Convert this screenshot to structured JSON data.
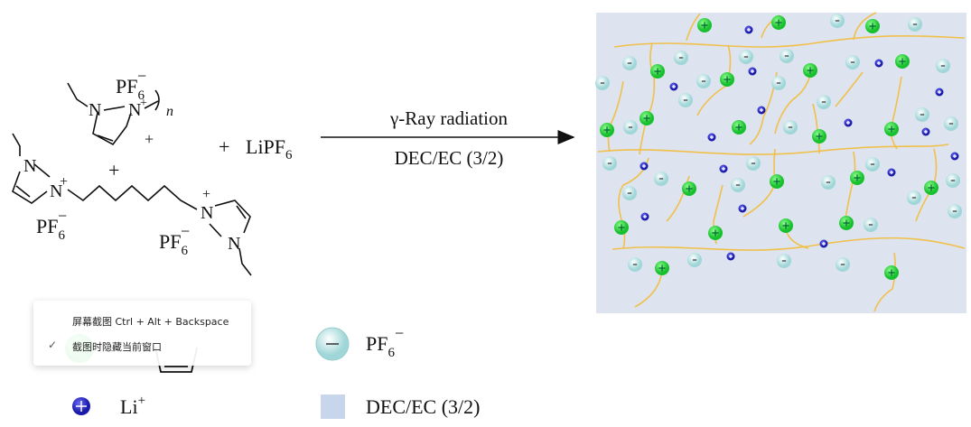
{
  "reaction": {
    "monomer_anion": {
      "base": "PF",
      "sub": "6",
      "sup": "−"
    },
    "atom_n": "N",
    "cation_charge": "+",
    "repeat_index": "n",
    "plus": "+",
    "salt": {
      "base": "LiPF",
      "sub": "6"
    },
    "arrow_top": "γ-Ray radiation",
    "arrow_bottom": "DEC/EC (3/2)"
  },
  "legend": {
    "anion_label": {
      "base": "PF",
      "sub": "6",
      "sup": "−"
    },
    "li_label": {
      "base": "Li",
      "sup": "+"
    },
    "solvent_label": "DEC/EC (3/2)"
  },
  "colors": {
    "panel_bg": "#dde3ef",
    "polymer_chain": "#f0c04a",
    "cation_green": "#22d33a",
    "anion_white": "#e6f7f7",
    "li_blue": "#2a2ad0",
    "solvent_square": "#c7d6ea"
  },
  "popup": {
    "items": [
      {
        "label": "屏幕截图 Ctrl + Alt + Backspace",
        "checked": false
      },
      {
        "label": "截图时隐藏当前窗口",
        "checked": true
      }
    ],
    "check_icon": "checkmark"
  }
}
